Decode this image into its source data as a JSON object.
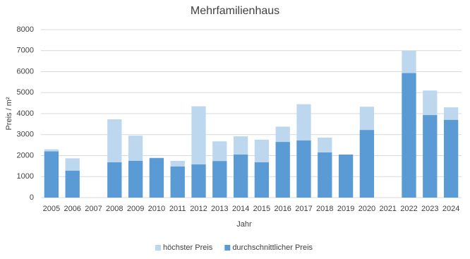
{
  "chart_data": {
    "type": "overlap-bar",
    "title": "Mehrfamilienhaus",
    "x_label": "Jahr",
    "y_label": "Preis / m²",
    "categories": [
      "2005",
      "2006",
      "2007",
      "2008",
      "2009",
      "2010",
      "2011",
      "2012",
      "2013",
      "2014",
      "2015",
      "2016",
      "2017",
      "2018",
      "2019",
      "2020",
      "2021",
      "2022",
      "2023",
      "2024"
    ],
    "series": [
      {
        "name": "höchster Preis",
        "color": "#bdd7ee",
        "values": [
          2300,
          1870,
          null,
          3730,
          2950,
          1900,
          1750,
          4350,
          2680,
          2920,
          2760,
          3380,
          4450,
          2860,
          2050,
          4330,
          null,
          7000,
          5100,
          4300
        ]
      },
      {
        "name": "durchschnittlicher Preis",
        "color": "#5b9bd5",
        "values": [
          2200,
          1280,
          null,
          1680,
          1750,
          1880,
          1480,
          1580,
          1740,
          2050,
          1680,
          2650,
          2720,
          2150,
          2050,
          3220,
          null,
          5930,
          3930,
          3700
        ]
      }
    ],
    "ylim": [
      0,
      8000
    ],
    "yticks": [
      0,
      1000,
      2000,
      3000,
      4000,
      5000,
      6000,
      7000,
      8000
    ],
    "grid": true
  }
}
